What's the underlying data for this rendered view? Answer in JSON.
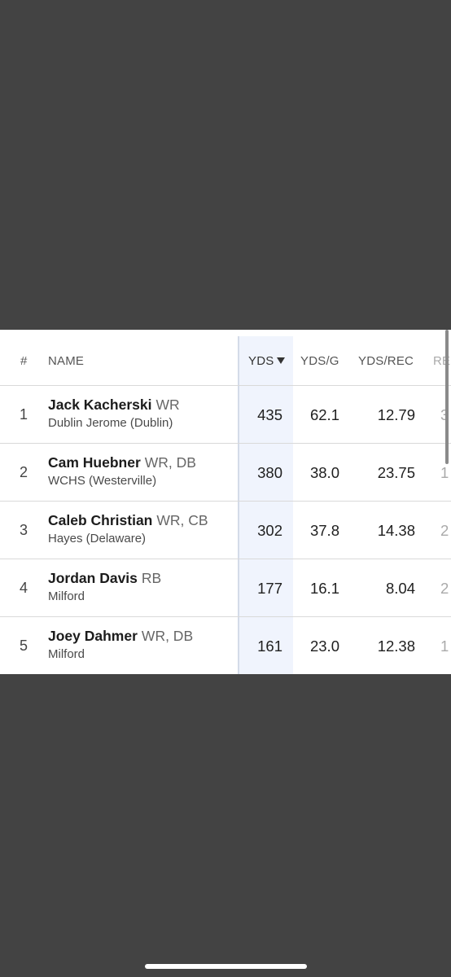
{
  "table": {
    "headers": {
      "rank": "#",
      "name": "NAME",
      "yds": "YDS",
      "yds_per_game": "YDS/G",
      "yds_per_rec": "YDS/REC",
      "cut": "RE"
    },
    "sort": {
      "column": "YDS",
      "direction": "descending"
    },
    "rows": [
      {
        "rank": "1",
        "name": "Jack Kacherski",
        "position": "WR",
        "school": "Dublin Jerome (Dublin)",
        "yds": "435",
        "yds_per_game": "62.1",
        "yds_per_rec": "12.79",
        "cut": "3"
      },
      {
        "rank": "2",
        "name": "Cam Huebner",
        "position": "WR, DB",
        "school": "WCHS (Westerville)",
        "yds": "380",
        "yds_per_game": "38.0",
        "yds_per_rec": "23.75",
        "cut": "1"
      },
      {
        "rank": "3",
        "name": "Caleb Christian",
        "position": "WR, CB",
        "school": "Hayes (Delaware)",
        "yds": "302",
        "yds_per_game": "37.8",
        "yds_per_rec": "14.38",
        "cut": "2"
      },
      {
        "rank": "4",
        "name": "Jordan Davis",
        "position": "RB",
        "school": "Milford",
        "yds": "177",
        "yds_per_game": "16.1",
        "yds_per_rec": "8.04",
        "cut": "2"
      },
      {
        "rank": "5",
        "name": "Joey Dahmer",
        "position": "WR, DB",
        "school": "Milford",
        "yds": "161",
        "yds_per_game": "23.0",
        "yds_per_rec": "12.38",
        "cut": "1"
      }
    ]
  },
  "icons": {
    "sort": "sort-descending-icon"
  },
  "colors": {
    "background": "#434343",
    "card": "#ffffff",
    "sorted_column": "#f0f4fd"
  }
}
